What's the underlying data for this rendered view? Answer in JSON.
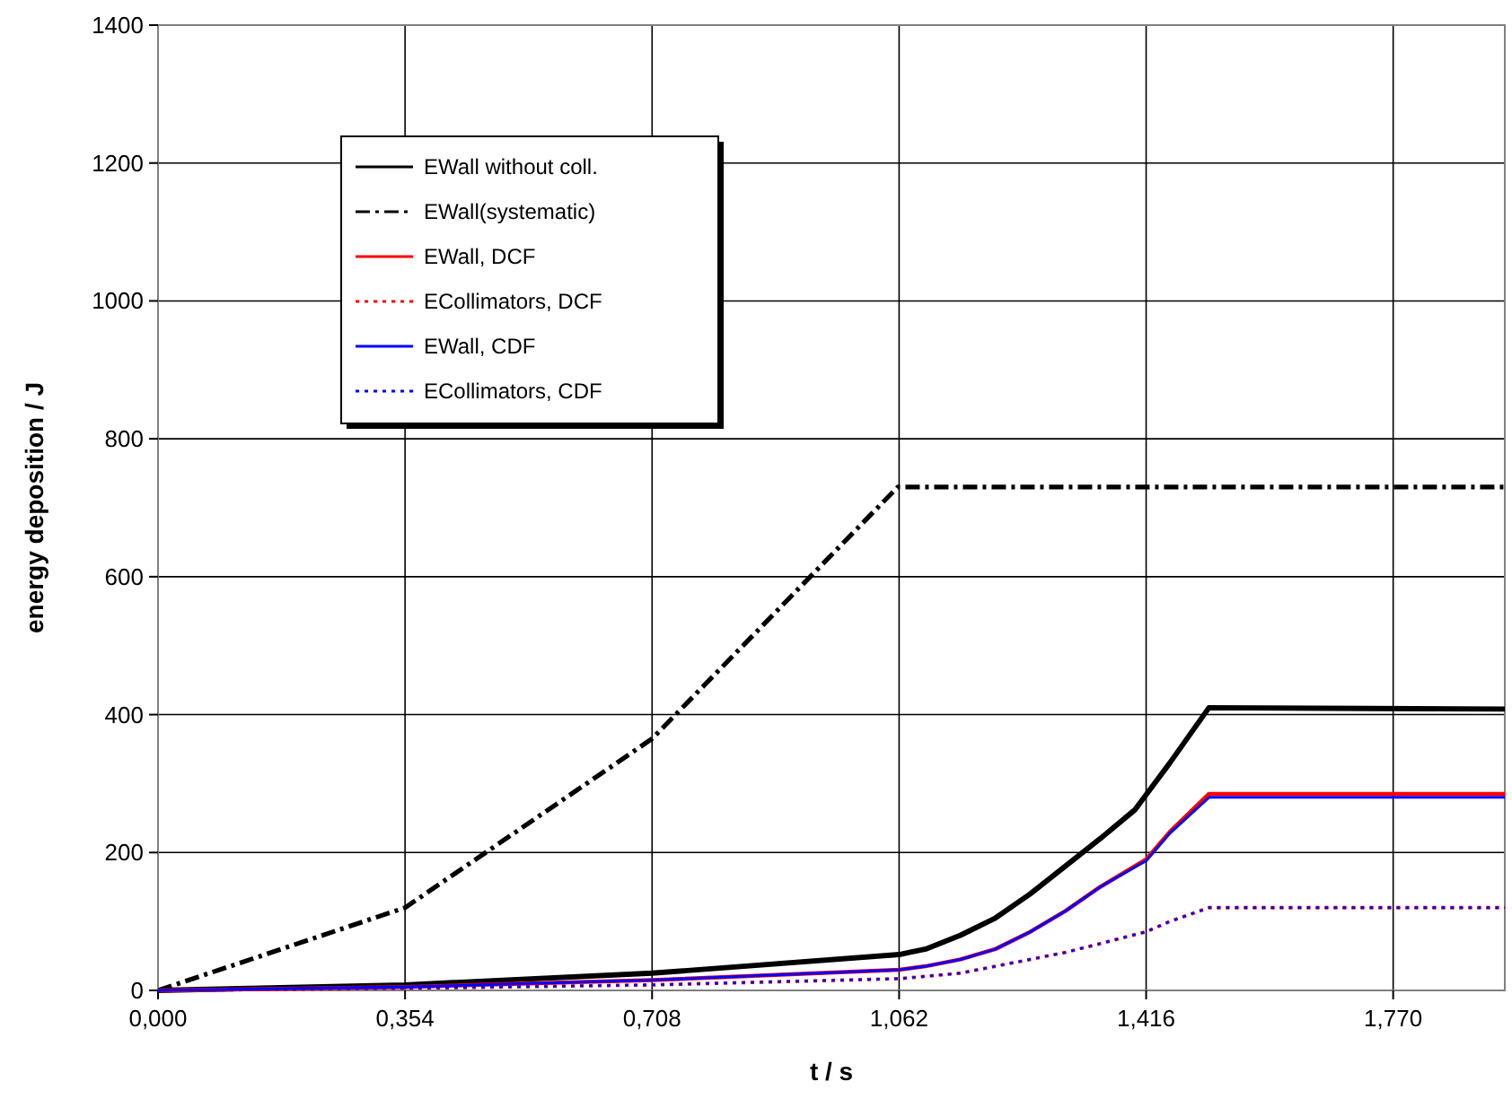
{
  "chart_data": {
    "type": "line",
    "xlabel": "t / s",
    "ylabel": "energy deposition / J",
    "xlim": [
      0,
      1.93
    ],
    "xticks": [
      {
        "value": 0,
        "label": "0,000"
      },
      {
        "value": 0.354,
        "label": "0,354"
      },
      {
        "value": 0.708,
        "label": "0,708"
      },
      {
        "value": 1.062,
        "label": "1,062"
      },
      {
        "value": 1.416,
        "label": "1,416"
      },
      {
        "value": 1.77,
        "label": "1,770"
      }
    ],
    "ylim": [
      0,
      1400
    ],
    "yticks": [
      0,
      200,
      400,
      600,
      800,
      1000,
      1200,
      1400
    ],
    "grid": true,
    "legend": "top left",
    "marker": "none",
    "series": [
      {
        "name": "EWall without coll.",
        "color": "#000000",
        "line_style": "solid",
        "x": [
          0,
          0.354,
          0.708,
          1.062,
          1.1,
          1.15,
          1.2,
          1.25,
          1.3,
          1.35,
          1.4,
          1.45,
          1.506,
          1.93
        ],
        "values": [
          0,
          8,
          25,
          52,
          60,
          80,
          105,
          140,
          180,
          220,
          262,
          330,
          410,
          408
        ]
      },
      {
        "name": "EWall(systematic)",
        "color": "#000000",
        "line_style": "dashdot",
        "x": [
          0,
          0.354,
          0.708,
          1.06,
          1.93
        ],
        "values": [
          0,
          120,
          365,
          730,
          730
        ]
      },
      {
        "name": "EWall, DCF",
        "color": "#ff0000",
        "line_style": "solid",
        "x": [
          0,
          0.354,
          0.708,
          1.062,
          1.1,
          1.15,
          1.2,
          1.25,
          1.3,
          1.35,
          1.416,
          1.45,
          1.506,
          1.93
        ],
        "values": [
          0,
          5,
          15,
          30,
          35,
          45,
          60,
          85,
          115,
          150,
          190,
          230,
          285,
          285
        ]
      },
      {
        "name": "ECollimators, DCF",
        "color": "#ff0000",
        "line_style": "dotted",
        "x": [
          0,
          0.354,
          0.708,
          1.062,
          1.15,
          1.2,
          1.3,
          1.416,
          1.45,
          1.506,
          1.93
        ],
        "values": [
          0,
          3,
          8,
          17,
          25,
          35,
          55,
          85,
          100,
          120,
          120
        ]
      },
      {
        "name": "EWall, CDF",
        "color": "#0000ff",
        "line_style": "solid",
        "x": [
          0,
          0.354,
          0.708,
          1.062,
          1.1,
          1.15,
          1.2,
          1.25,
          1.3,
          1.35,
          1.416,
          1.45,
          1.506,
          1.93
        ],
        "values": [
          0,
          5,
          15,
          30,
          35,
          45,
          60,
          85,
          115,
          150,
          188,
          228,
          280,
          280
        ]
      },
      {
        "name": "ECollimators, CDF",
        "color": "#0000ff",
        "line_style": "dotted",
        "x": [
          0,
          0.354,
          0.708,
          1.062,
          1.15,
          1.2,
          1.3,
          1.416,
          1.45,
          1.506,
          1.93
        ],
        "values": [
          0,
          3,
          8,
          17,
          25,
          35,
          55,
          85,
          100,
          120,
          120
        ]
      }
    ]
  }
}
